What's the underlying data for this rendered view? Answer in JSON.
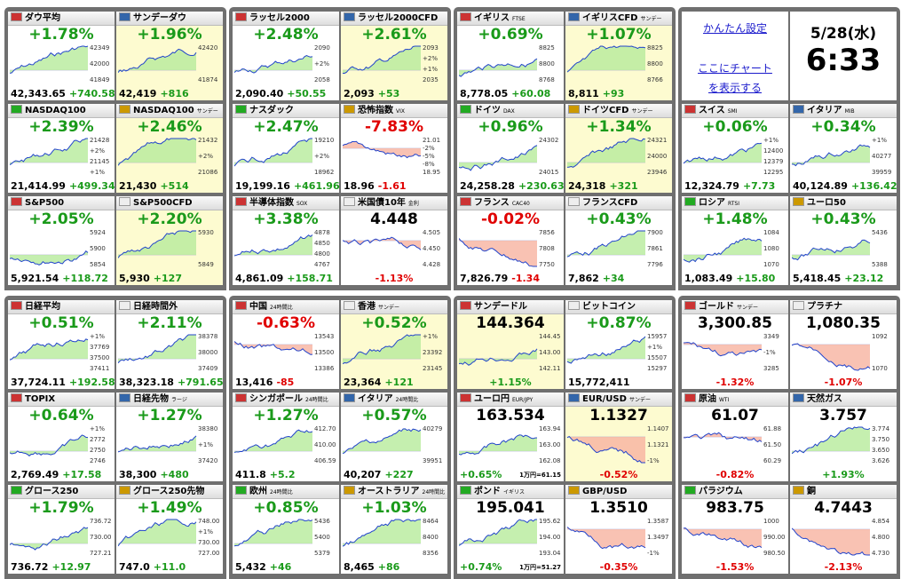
{
  "panel": {
    "settings": "かんたん設定",
    "chart_link": "ここにチャートを表示する",
    "date": "5/28(水)",
    "time": "6:33"
  },
  "tiles": [
    {
      "name": "ダウ平均",
      "main": "+1.78%",
      "labels": [
        "42349",
        "42000",
        "41849"
      ],
      "price": "42,343.65",
      "diff": "+740.58"
    },
    {
      "name": "サンデーダウ",
      "main": "+1.96%",
      "labels": [
        "42420",
        "41874"
      ],
      "price": "42,419",
      "diff": "+816",
      "highlight": true
    },
    {
      "name": "NASDAQ100",
      "main": "+2.39%",
      "labels": [
        "21428",
        "+2%",
        "21145",
        "+1%"
      ],
      "price": "21,414.99",
      "diff": "+499.34"
    },
    {
      "name": "NASDAQ100",
      "sub": "サンデー",
      "main": "+2.46%",
      "labels": [
        "21432",
        "+2%",
        "21086"
      ],
      "price": "21,430",
      "diff": "+514",
      "highlight": true
    },
    {
      "name": "S&P500",
      "main": "+2.05%",
      "labels": [
        "5924",
        "5900",
        "5854"
      ],
      "price": "5,921.54",
      "diff": "+118.72"
    },
    {
      "name": "S&P500CFD",
      "main": "+2.20%",
      "labels": [
        "5930",
        "5849"
      ],
      "price": "5,930",
      "diff": "+127",
      "highlight": true
    },
    {
      "name": "ラッセル2000",
      "main": "+2.48%",
      "labels": [
        "2090",
        "+2%",
        "2058"
      ],
      "price": "2,090.40",
      "diff": "+50.55"
    },
    {
      "name": "ラッセル2000CFD",
      "main": "+2.61%",
      "labels": [
        "2093",
        "+2%",
        "+1%",
        "2035"
      ],
      "price": "2,093",
      "diff": "+53",
      "highlight": true
    },
    {
      "name": "ナスダック",
      "main": "+2.47%",
      "labels": [
        "19210",
        "+2%",
        "18962"
      ],
      "price": "19,199.16",
      "diff": "+461.96"
    },
    {
      "name": "恐怖指数",
      "sub": "VIX",
      "main": "-7.83%",
      "labels": [
        "21.01",
        "-2%",
        "-5%",
        "-8%",
        "18.95"
      ],
      "price": "18.96",
      "diff": "-1.61"
    },
    {
      "name": "半導体指数",
      "sub": "SOX",
      "main": "+3.38%",
      "labels": [
        "4878",
        "4850",
        "4800",
        "4767"
      ],
      "price": "4,861.09",
      "diff": "+158.71"
    },
    {
      "name": "米国債10年",
      "sub": "金利",
      "main": "4.448",
      "labels": [
        "4.505",
        "4.450",
        "4.428"
      ],
      "foot": "-1.13%"
    },
    {
      "name": "イギリス",
      "sub": "FTSE",
      "main": "+0.69%",
      "labels": [
        "8825",
        "8800",
        "8768"
      ],
      "price": "8,778.05",
      "diff": "+60.08"
    },
    {
      "name": "イギリスCFD",
      "sub": "サンデー",
      "main": "+1.07%",
      "labels": [
        "8825",
        "8800",
        "8766"
      ],
      "price": "8,811",
      "diff": "+93",
      "highlight": true
    },
    {
      "name": "ドイツ",
      "sub": "DAX",
      "main": "+0.96%",
      "labels": [
        "24302",
        "24015"
      ],
      "price": "24,258.28",
      "diff": "+230.63"
    },
    {
      "name": "ドイツCFD",
      "sub": "サンデー",
      "main": "+1.34%",
      "labels": [
        "24321",
        "24000",
        "23946"
      ],
      "price": "24,318",
      "diff": "+321",
      "highlight": true
    },
    {
      "name": "フランス",
      "sub": "CAC40",
      "main": "-0.02%",
      "labels": [
        "7856",
        "7808",
        "7750"
      ],
      "price": "7,826.79",
      "diff": "-1.34"
    },
    {
      "name": "フランスCFD",
      "main": "+0.43%",
      "labels": [
        "7900",
        "7861",
        "7796"
      ],
      "price": "7,862",
      "diff": "+34"
    },
    {
      "name": "スイス",
      "sub": "SMI",
      "main": "+0.06%",
      "labels": [
        "+1%",
        "12400",
        "12379",
        "12295"
      ],
      "price": "12,324.79",
      "diff": "+7.73"
    },
    {
      "name": "イタリア",
      "sub": "MIB",
      "main": "+0.34%",
      "labels": [
        "+1%",
        "40277",
        "39959"
      ],
      "price": "40,124.89",
      "diff": "+136.42"
    },
    {
      "name": "ロシア",
      "sub": "RTSI",
      "main": "+1.48%",
      "labels": [
        "1084",
        "1080",
        "1070"
      ],
      "price": "1,083.49",
      "diff": "+15.80"
    },
    {
      "name": "ユーロ50",
      "main": "+0.43%",
      "labels": [
        "5436",
        "5388"
      ],
      "price": "5,418.45",
      "diff": "+23.12"
    },
    {
      "name": "日経平均",
      "main": "+0.51%",
      "labels": [
        "+1%",
        "37769",
        "37500",
        "37411"
      ],
      "price": "37,724.11",
      "diff": "+192.58"
    },
    {
      "name": "日経時間外",
      "main": "+2.11%",
      "labels": [
        "38378",
        "38000",
        "37409"
      ],
      "price": "38,323.18",
      "diff": "+791.65"
    },
    {
      "name": "TOPIX",
      "main": "+0.64%",
      "labels": [
        "+1%",
        "2772",
        "2750",
        "2746"
      ],
      "price": "2,769.49",
      "diff": "+17.58"
    },
    {
      "name": "日経先物",
      "sub": "ラージ",
      "main": "+1.27%",
      "labels": [
        "38380",
        "+1%",
        "37420"
      ],
      "price": "38,300",
      "diff": "+480"
    },
    {
      "name": "グロース250",
      "main": "+1.79%",
      "labels": [
        "736.72",
        "730.00",
        "727.21"
      ],
      "price": "736.72",
      "diff": "+12.97"
    },
    {
      "name": "グロース250先物",
      "main": "+1.49%",
      "labels": [
        "748.00",
        "+1%",
        "730.00",
        "727.00"
      ],
      "price": "747.0",
      "diff": "+11.0"
    },
    {
      "name": "中国",
      "sub": "24時間比",
      "main": "-0.63%",
      "labels": [
        "13543",
        "13500",
        "13386"
      ],
      "price": "13,416",
      "diff": "-85"
    },
    {
      "name": "香港",
      "sub": "サンデー",
      "main": "+0.52%",
      "labels": [
        "+1%",
        "23392",
        "23145"
      ],
      "price": "23,364",
      "diff": "+121",
      "highlight": true
    },
    {
      "name": "シンガポール",
      "sub": "24時間比",
      "main": "+1.27%",
      "labels": [
        "412.70",
        "410.00",
        "406.59"
      ],
      "price": "411.8",
      "diff": "+5.2"
    },
    {
      "name": "イタリア",
      "sub": "24時間比",
      "main": "+0.57%",
      "labels": [
        "40279",
        "39951"
      ],
      "price": "40,207",
      "diff": "+227"
    },
    {
      "name": "欧州",
      "sub": "24時間比",
      "main": "+0.85%",
      "labels": [
        "5436",
        "5400",
        "5379"
      ],
      "price": "5,432",
      "diff": "+46"
    },
    {
      "name": "オーストラリア",
      "sub": "24時間比",
      "main": "+1.03%",
      "labels": [
        "8464",
        "8400",
        "8356"
      ],
      "price": "8,465",
      "diff": "+86"
    },
    {
      "name": "サンデードル",
      "main": "144.364",
      "labels": [
        "144.45",
        "143.00",
        "142.11"
      ],
      "foot": "+1.15%",
      "highlight": true
    },
    {
      "name": "ビットコイン",
      "main": "+0.87%",
      "labels": [
        "15957",
        "+1%",
        "15507",
        "15297"
      ],
      "price": "15,772,411"
    },
    {
      "name": "ユーロ円",
      "sub": "EUR/JPY",
      "main": "163.534",
      "labels": [
        "163.94",
        "163.00",
        "162.08"
      ],
      "foot": "+0.65%",
      "extra": "1万円=61.15"
    },
    {
      "name": "EUR/USD",
      "sub": "サンデー",
      "main": "1.1327",
      "labels": [
        "1.1407",
        "1.1321",
        "-1%"
      ],
      "foot": "-0.52%",
      "highlight": true
    },
    {
      "name": "ポンド",
      "sub": "イギリス",
      "main": "195.041",
      "labels": [
        "195.62",
        "194.00",
        "193.04"
      ],
      "foot": "+0.74%",
      "extra": "1万円=51.27"
    },
    {
      "name": "GBP/USD",
      "main": "1.3510",
      "labels": [
        "1.3587",
        "1.3497",
        "-1%"
      ],
      "foot": "-0.35%"
    },
    {
      "name": "ゴールド",
      "sub": "サンデー",
      "main": "3,300.85",
      "labels": [
        "3349",
        "-1%",
        "3285"
      ],
      "foot": "-1.32%"
    },
    {
      "name": "プラチナ",
      "main": "1,080.35",
      "labels": [
        "1092",
        "1070"
      ],
      "foot": "-1.07%"
    },
    {
      "name": "原油",
      "sub": "WTI",
      "main": "61.07",
      "labels": [
        "61.88",
        "61.50",
        "60.29"
      ],
      "foot": "-0.82%"
    },
    {
      "name": "天然ガス",
      "main": "3.757",
      "labels": [
        "3.774",
        "3.750",
        "3.650",
        "3.626"
      ],
      "foot": "+1.93%"
    },
    {
      "name": "パラジウム",
      "main": "983.75",
      "labels": [
        "1000",
        "990.00",
        "980.50"
      ],
      "foot": "-1.53%"
    },
    {
      "name": "銅",
      "main": "4.7443",
      "labels": [
        "4.854",
        "4.800",
        "4.730"
      ],
      "foot": "-2.13%"
    }
  ]
}
